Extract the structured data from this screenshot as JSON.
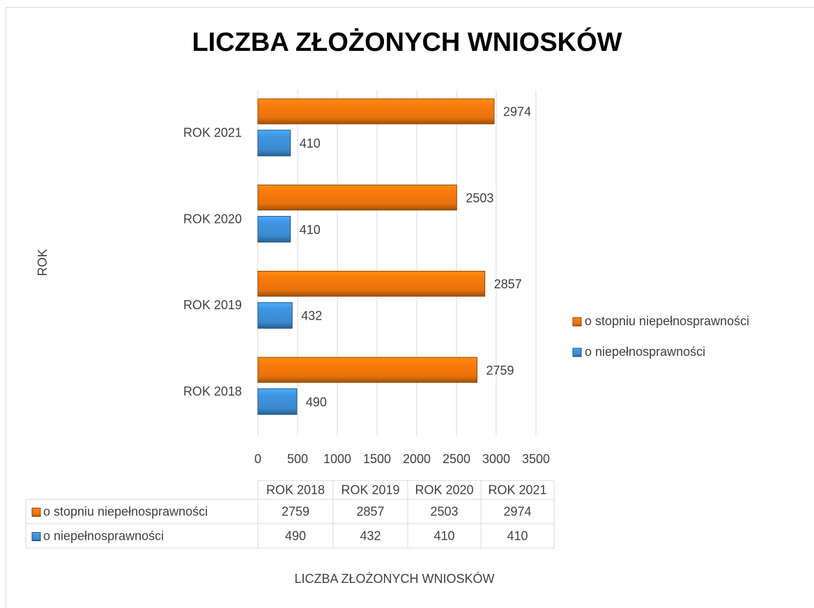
{
  "chart_data": {
    "type": "bar",
    "orientation": "horizontal",
    "title": "LICZBA ZŁOŻONYCH WNIOSKÓW",
    "x_label": "LICZBA ZŁOŻONYCH WNIOSKÓW",
    "y_label": "ROK",
    "categories": [
      "ROK 2018",
      "ROK 2019",
      "ROK 2020",
      "ROK 2021"
    ],
    "series": [
      {
        "name": "o stopniu niepełnosprawności",
        "color": "#e8720c",
        "values": [
          2759,
          2857,
          2503,
          2974
        ]
      },
      {
        "name": "o niepełnosprawności",
        "color": "#3b8ad0",
        "values": [
          490,
          432,
          410,
          410
        ]
      }
    ],
    "xlim": [
      0,
      3500
    ],
    "xticks": [
      0,
      500,
      1000,
      1500,
      2000,
      2500,
      3000,
      3500
    ],
    "grid": true,
    "legend": "right",
    "data_table": true
  }
}
